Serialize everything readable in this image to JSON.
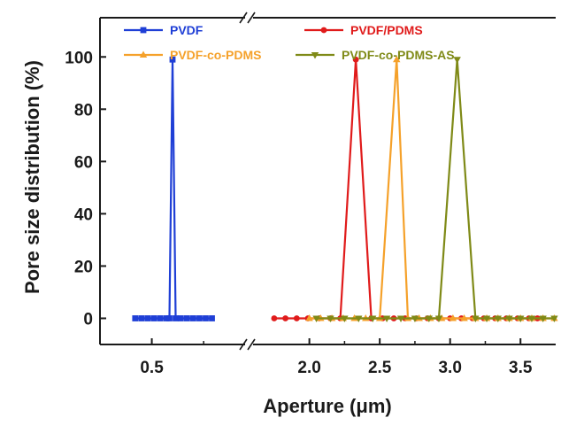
{
  "chart_data": {
    "type": "line",
    "title": "",
    "xlabel": "Aperture (μm)",
    "ylabel": "Pore size distribution (%)",
    "ylim": [
      -10,
      115
    ],
    "y_ticks": [
      0,
      20,
      40,
      60,
      80,
      100
    ],
    "x_axis_break": true,
    "x_segments": [
      {
        "xlim": [
          0.25,
          0.95
        ],
        "ticks": [
          0.5
        ],
        "tick_labels": [
          "0.5"
        ]
      },
      {
        "xlim": [
          1.6,
          3.75
        ],
        "ticks": [
          2.0,
          2.5,
          3.0,
          3.5
        ],
        "tick_labels": [
          "2.0",
          "2.5",
          "3.0",
          "3.5"
        ]
      }
    ],
    "series": [
      {
        "name": "PVDF",
        "color": "#1f3fd6",
        "marker": "square",
        "points": [
          [
            0.42,
            0
          ],
          [
            0.45,
            0
          ],
          [
            0.48,
            0
          ],
          [
            0.51,
            0
          ],
          [
            0.54,
            0
          ],
          [
            0.57,
            0
          ],
          [
            0.585,
            0
          ],
          [
            0.6,
            99
          ],
          [
            0.615,
            0
          ],
          [
            0.64,
            0
          ],
          [
            0.67,
            0
          ],
          [
            0.7,
            0
          ],
          [
            0.73,
            0
          ],
          [
            0.76,
            0
          ],
          [
            0.79,
            0
          ]
        ]
      },
      {
        "name": "PVDF/PDMS",
        "color": "#e01b1b",
        "marker": "circle",
        "points": [
          [
            1.75,
            0
          ],
          [
            1.83,
            0
          ],
          [
            1.91,
            0
          ],
          [
            1.99,
            0
          ],
          [
            2.07,
            0
          ],
          [
            2.15,
            0
          ],
          [
            2.22,
            0
          ],
          [
            2.33,
            99
          ],
          [
            2.44,
            0
          ],
          [
            2.52,
            0
          ],
          [
            2.6,
            0
          ],
          [
            2.68,
            0
          ],
          [
            2.76,
            0
          ],
          [
            2.84,
            0
          ],
          [
            2.92,
            0
          ],
          [
            3.0,
            0
          ],
          [
            3.08,
            0
          ],
          [
            3.16,
            0
          ],
          [
            3.24,
            0
          ],
          [
            3.32,
            0
          ],
          [
            3.4,
            0
          ],
          [
            3.48,
            0
          ],
          [
            3.56,
            0
          ],
          [
            3.62,
            0
          ]
        ]
      },
      {
        "name": "PVDF-co-PDMS",
        "color": "#f5a12a",
        "marker": "triangle-up",
        "points": [
          [
            2.0,
            0
          ],
          [
            2.08,
            0
          ],
          [
            2.16,
            0
          ],
          [
            2.24,
            0
          ],
          [
            2.32,
            0
          ],
          [
            2.4,
            0
          ],
          [
            2.5,
            0
          ],
          [
            2.62,
            99
          ],
          [
            2.7,
            0
          ],
          [
            2.78,
            0
          ],
          [
            2.86,
            0
          ],
          [
            2.94,
            0
          ],
          [
            3.02,
            0
          ],
          [
            3.1,
            0
          ],
          [
            3.18,
            0
          ],
          [
            3.26,
            0
          ],
          [
            3.34,
            0
          ],
          [
            3.42,
            0
          ],
          [
            3.5,
            0
          ],
          [
            3.58,
            0
          ],
          [
            3.66,
            0
          ],
          [
            3.74,
            0
          ]
        ]
      },
      {
        "name": "PVDF-co-PDMS-AS",
        "color": "#7f8a17",
        "marker": "triangle-down",
        "points": [
          [
            2.05,
            0
          ],
          [
            2.15,
            0
          ],
          [
            2.25,
            0
          ],
          [
            2.35,
            0
          ],
          [
            2.45,
            0
          ],
          [
            2.55,
            0
          ],
          [
            2.65,
            0
          ],
          [
            2.75,
            0
          ],
          [
            2.85,
            0
          ],
          [
            2.92,
            0
          ],
          [
            3.05,
            99
          ],
          [
            3.18,
            0
          ],
          [
            3.26,
            0
          ],
          [
            3.34,
            0
          ],
          [
            3.42,
            0
          ],
          [
            3.5,
            0
          ],
          [
            3.58,
            0
          ],
          [
            3.66,
            0
          ],
          [
            3.74,
            0
          ]
        ]
      }
    ],
    "legend": [
      {
        "label": "PVDF",
        "series": 0,
        "position": "top-left"
      },
      {
        "label": "PVDF/PDMS",
        "series": 1,
        "position": "top-right"
      },
      {
        "label": "PVDF-co-PDMS",
        "series": 2,
        "position": "second-row-left"
      },
      {
        "label": "PVDF-co-PDMS-AS",
        "series": 3,
        "position": "second-row-right"
      }
    ]
  }
}
